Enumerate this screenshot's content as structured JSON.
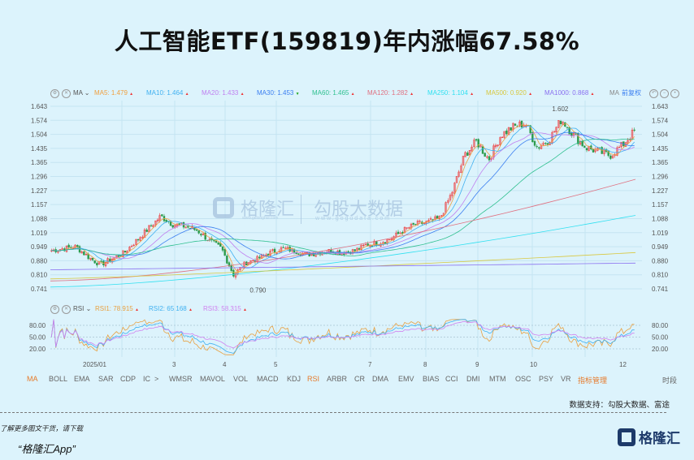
{
  "title": "人工智能ETF(159819)年内涨幅67.58%",
  "legend": {
    "indicator": "MA",
    "items": [
      {
        "label": "MA5:",
        "value": "1.479",
        "dir": "up",
        "color": "#f0a040"
      },
      {
        "label": "MA10:",
        "value": "1.464",
        "dir": "up",
        "color": "#3fb0f0"
      },
      {
        "label": "MA20:",
        "value": "1.433",
        "dir": "up",
        "color": "#c080f0"
      },
      {
        "label": "MA30:",
        "value": "1.453",
        "dir": "down",
        "color": "#3a7ef0"
      },
      {
        "label": "MA60:",
        "value": "1.465",
        "dir": "up",
        "color": "#30c090"
      },
      {
        "label": "MA120:",
        "value": "1.282",
        "dir": "up",
        "color": "#e07080"
      },
      {
        "label": "MA250:",
        "value": "1.104",
        "dir": "up",
        "color": "#30e0f0"
      },
      {
        "label": "MA500:",
        "value": "0.920",
        "dir": "up",
        "color": "#d8c840"
      },
      {
        "label": "MA1000:",
        "value": "0.868",
        "dir": "up",
        "color": "#8a70f0"
      }
    ],
    "ma_short": "MA",
    "adjust": "前复权"
  },
  "rsi_legend": {
    "indicator": "RSI",
    "items": [
      {
        "label": "RSI1:",
        "value": "78.915",
        "dir": "up",
        "color": "#e8a040"
      },
      {
        "label": "RSI2:",
        "value": "65.168",
        "dir": "up",
        "color": "#3fb0f0"
      },
      {
        "label": "RSI3:",
        "value": "58.315",
        "dir": "up",
        "color": "#d080f0"
      }
    ]
  },
  "chart_data": {
    "type": "candlestick",
    "price_ticks": [
      "1.643",
      "1.574",
      "1.504",
      "1.435",
      "1.365",
      "1.296",
      "1.227",
      "1.157",
      "1.088",
      "1.019",
      "0.949",
      "0.880",
      "0.810",
      "0.741"
    ],
    "ylim": [
      0.741,
      1.643
    ],
    "rsi_ticks": [
      "80.00",
      "50.00",
      "20.00"
    ],
    "x_ticks": [
      "2025/01",
      "3",
      "4",
      "5",
      "7",
      "8",
      "9",
      "10",
      "12"
    ],
    "close_approx": [
      0.93,
      0.94,
      0.95,
      0.9,
      0.86,
      0.89,
      0.92,
      0.98,
      1.04,
      1.1,
      1.06,
      1.05,
      1.03,
      0.98,
      0.94,
      0.81,
      0.87,
      0.89,
      0.92,
      0.94,
      0.93,
      0.91,
      0.92,
      0.93,
      0.92,
      0.93,
      0.96,
      0.97,
      0.99,
      1.03,
      1.06,
      1.07,
      1.09,
      1.22,
      1.4,
      1.47,
      1.38,
      1.5,
      1.54,
      1.56,
      1.44,
      1.48,
      1.58,
      1.5,
      1.44,
      1.42,
      1.4,
      1.45,
      1.52
    ],
    "annotations": {
      "high": "1.602",
      "low": "0.790"
    },
    "up_color": "#e33",
    "down_color": "#2a9a4a"
  },
  "indicators": [
    "MA",
    "BOLL",
    "EMA",
    "SAR",
    "CDP",
    "IC",
    ">",
    "WMSR",
    "MAVOL",
    "VOL",
    "MACD",
    "KDJ",
    "RSI",
    "ARBR",
    "CR",
    "DMA",
    "EMV",
    "BIAS",
    "CCI",
    "DMI",
    "MTM",
    "OSC",
    "PSY",
    "VR",
    "指标管理"
  ],
  "period": "时段",
  "source": "数据支持：勾股大数据、富途",
  "watermark": {
    "brand": "格隆汇",
    "brand_url": "www.gelonghui.com",
    "data": "勾股大数据",
    "data_url": "www.gogudata.com"
  },
  "footer": {
    "tip": "了解更多图文干货，请下载",
    "app": "“格隆汇App”",
    "logo": "格隆汇"
  }
}
